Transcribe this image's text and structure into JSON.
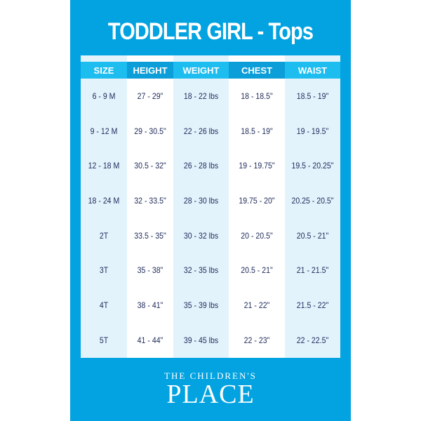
{
  "title": "TODDLER GIRL - Tops",
  "headers": [
    "SIZE",
    "HEIGHT",
    "WEIGHT",
    "CHEST",
    "WAIST"
  ],
  "rows": [
    [
      "6 - 9 M",
      "27 - 29\"",
      "18 - 22 lbs",
      "18 - 18.5\"",
      "18.5 - 19\""
    ],
    [
      "9 - 12 M",
      "29 - 30.5\"",
      "22 - 26 lbs",
      "18.5 - 19\"",
      "19 - 19.5\""
    ],
    [
      "12 - 18 M",
      "30.5 - 32\"",
      "26 - 28 lbs",
      "19 - 19.75\"",
      "19.5 - 20.25\""
    ],
    [
      "18 - 24 M",
      "32 - 33.5\"",
      "28 - 30 lbs",
      "19.75 - 20\"",
      "20.25 - 20.5\""
    ],
    [
      "2T",
      "33.5 - 35\"",
      "30 - 32 lbs",
      "20 - 20.5\"",
      "20.5 - 21\""
    ],
    [
      "3T",
      "35 - 38\"",
      "32 - 35 lbs",
      "20.5 - 21\"",
      "21 - 21.5\""
    ],
    [
      "4T",
      "38 - 41\"",
      "35 - 39 lbs",
      "21 - 22\"",
      "21.5 - 22\""
    ],
    [
      "5T",
      "41 - 44\"",
      "39 - 45 lbs",
      "22 - 23\"",
      "22 - 22.5\""
    ]
  ],
  "logo": {
    "line1": "THE CHILDREN'S",
    "line2": "PLACE"
  },
  "colors": {
    "brand_blue": "#02a3e0",
    "text_navy": "#1e2a5a"
  }
}
